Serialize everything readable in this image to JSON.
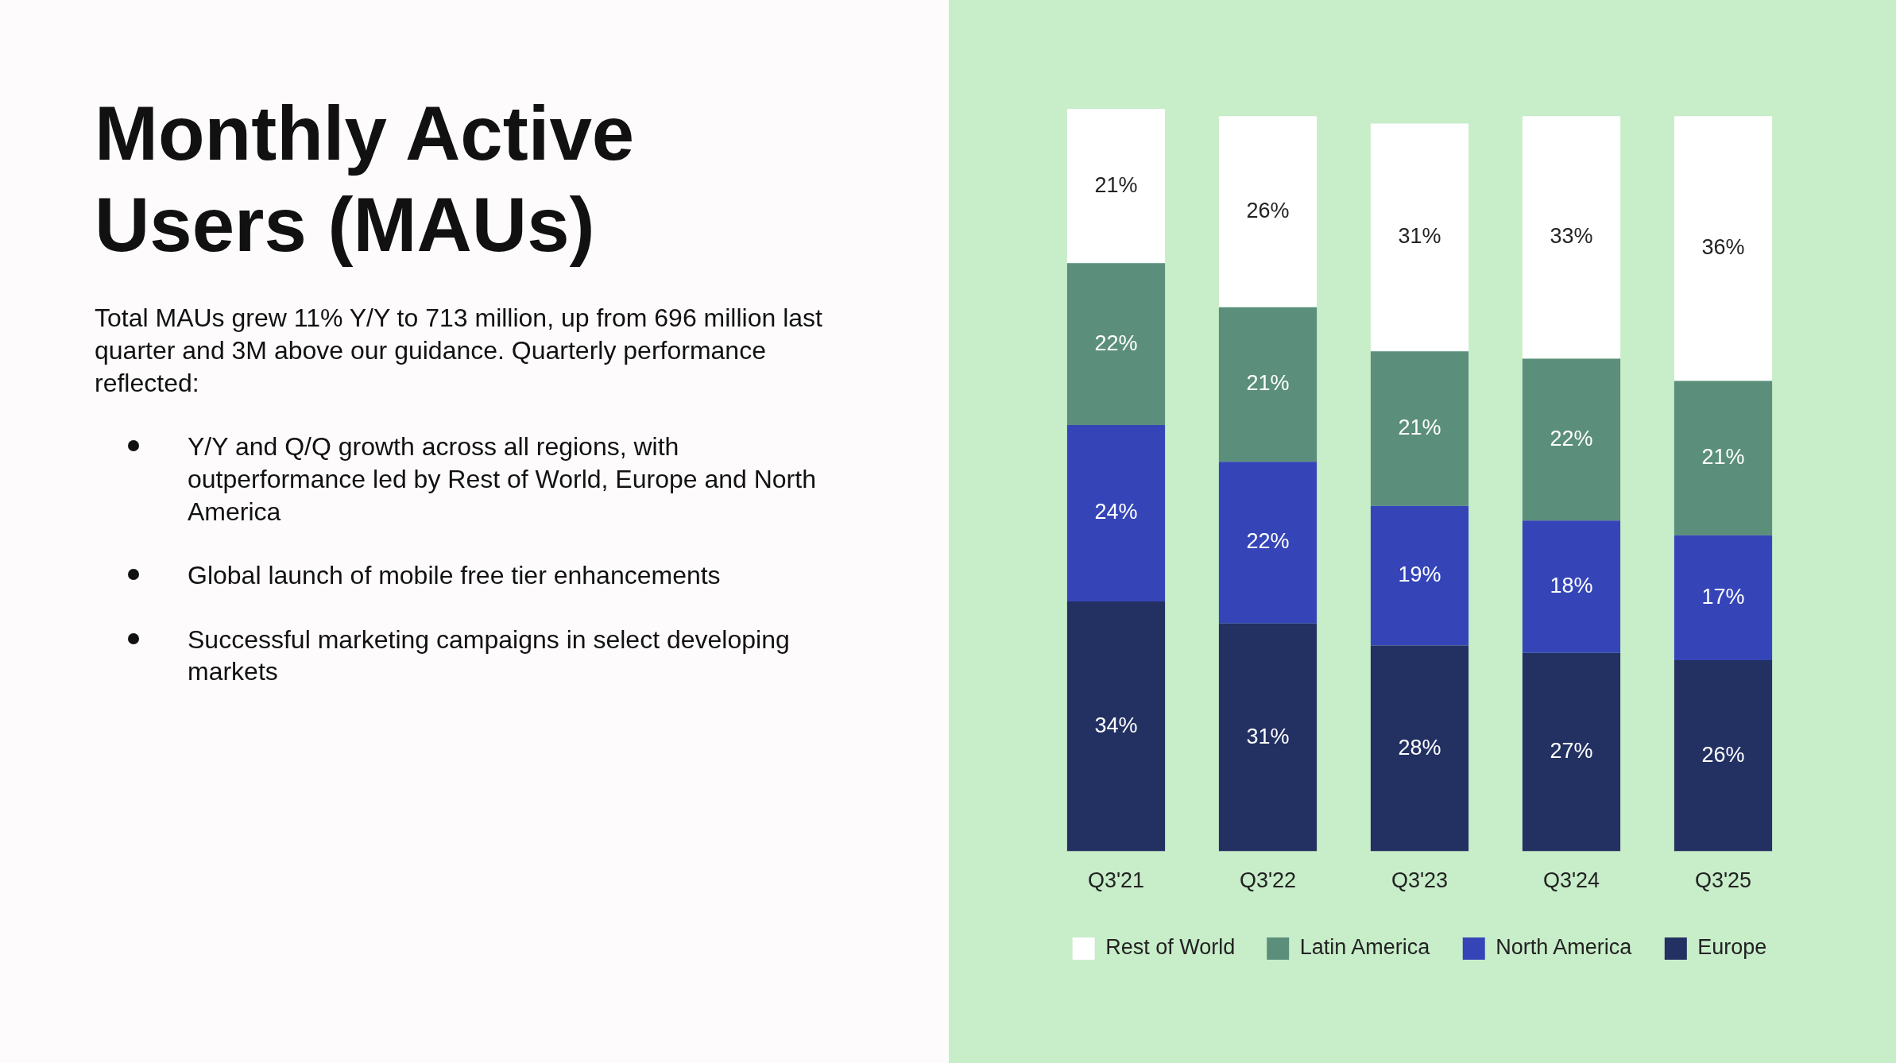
{
  "chart_data": {
    "type": "bar",
    "title": "Monthly Active Users (MAUs)",
    "subtitle": "Total MAUs grew 11% Y/Y to 713 million, up from 696 million last quarter and 3M above our guidance. Quarterly performance reflected:",
    "annotations": [
      "Y/Y and Q/Q growth across all regions, with outperformance led by Rest of World, Europe and North America",
      "Global launch of mobile free tier enhancements",
      "Successful marketing campaigns in select developing markets"
    ],
    "categories": [
      "Q3'21",
      "Q3'22",
      "Q3'23",
      "Q3'24",
      "Q3'25"
    ],
    "stacked": true,
    "legend": "bottom",
    "series": [
      {
        "name": "Europe",
        "color": "#233062",
        "values": [
          34,
          31,
          28,
          27,
          26
        ],
        "value_labels": [
          "34%",
          "31%",
          "28%",
          "27%",
          "26%"
        ]
      },
      {
        "name": "North America",
        "color": "#3545b8",
        "values": [
          24,
          22,
          19,
          18,
          17
        ],
        "value_labels": [
          "24%",
          "22%",
          "19%",
          "18%",
          "17%"
        ]
      },
      {
        "name": "Latin America",
        "color": "#5b8f7b",
        "values": [
          22,
          21,
          21,
          22,
          21
        ],
        "value_labels": [
          "22%",
          "21%",
          "21%",
          "22%",
          "21%"
        ]
      },
      {
        "name": "Rest of World",
        "color": "#ffffff",
        "values": [
          21,
          26,
          31,
          33,
          36
        ],
        "value_labels": [
          "21%",
          "26%",
          "31%",
          "33%",
          "36%"
        ]
      }
    ]
  }
}
